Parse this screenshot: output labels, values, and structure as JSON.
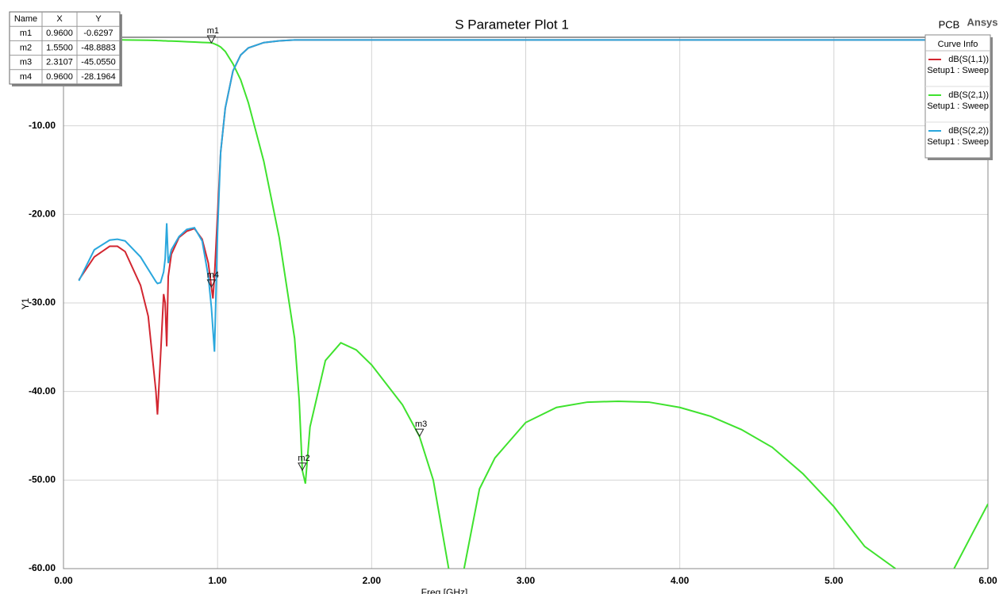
{
  "chart_data": {
    "type": "line",
    "title": "S Parameter Plot 1",
    "product": "PCB",
    "vendor": "Ansys",
    "xlabel": "Freq [GHz]",
    "ylabel": "Y1",
    "legend_title": "Curve Info",
    "grid": true,
    "xlim": [
      0,
      6
    ],
    "ylim": [
      -60,
      0
    ],
    "xticks": [
      {
        "value": 0,
        "label": "0.00"
      },
      {
        "value": 1,
        "label": "1.00"
      },
      {
        "value": 2,
        "label": "2.00"
      },
      {
        "value": 3,
        "label": "3.00"
      },
      {
        "value": 4,
        "label": "4.00"
      },
      {
        "value": 5,
        "label": "5.00"
      },
      {
        "value": 6,
        "label": "6.00"
      }
    ],
    "yticks": [
      {
        "value": -60,
        "label": "-60.00"
      },
      {
        "value": -50,
        "label": "-50.00"
      },
      {
        "value": -40,
        "label": "-40.00"
      },
      {
        "value": -30,
        "label": "-30.00"
      },
      {
        "value": -20,
        "label": "-20.00"
      },
      {
        "value": -10,
        "label": "-10.00"
      }
    ],
    "x": [
      0.1,
      0.2,
      0.3,
      0.35,
      0.4,
      0.5,
      0.55,
      0.6,
      0.61,
      0.63,
      0.65,
      0.66,
      0.67,
      0.68,
      0.7,
      0.75,
      0.8,
      0.85,
      0.9,
      0.94,
      0.96,
      0.97,
      0.98,
      1.0,
      1.02,
      1.05,
      1.1,
      1.15,
      1.2,
      1.3,
      1.4,
      1.5,
      1.53,
      1.55,
      1.57,
      1.6,
      1.7,
      1.8,
      1.9,
      2.0,
      2.2,
      2.31,
      2.4,
      2.5,
      2.55,
      2.6,
      2.7,
      2.8,
      3.0,
      3.2,
      3.4,
      3.6,
      3.8,
      4.0,
      4.2,
      4.4,
      4.6,
      4.8,
      5.0,
      5.2,
      5.4,
      5.6,
      5.78,
      5.9,
      6.0
    ],
    "series": [
      {
        "name": "dB(S(1,1))",
        "sweep": "Setup1 : Sweep",
        "color": "#d22630",
        "values": [
          -27.4,
          -24.8,
          -23.6,
          -23.6,
          -24.2,
          -28,
          -31.5,
          -40,
          -42.6,
          -36,
          -29,
          -30,
          -34.9,
          -27,
          -24.5,
          -22.6,
          -21.9,
          -21.6,
          -22.8,
          -25.5,
          -28.2,
          -29.5,
          -27,
          -20,
          -13,
          -8,
          -3.8,
          -2,
          -1.2,
          -0.6,
          -0.4,
          -0.3,
          -0.3,
          -0.3,
          -0.3,
          -0.3,
          -0.3,
          -0.3,
          -0.3,
          -0.3,
          -0.3,
          -0.3,
          -0.3,
          -0.3,
          -0.3,
          -0.3,
          -0.3,
          -0.3,
          -0.3,
          -0.3,
          -0.3,
          -0.3,
          -0.3,
          -0.3,
          -0.3,
          -0.3,
          -0.3,
          -0.3,
          -0.3,
          -0.3,
          -0.3,
          -0.3,
          -0.3,
          -0.3,
          -0.3
        ]
      },
      {
        "name": "dB(S(2,1))",
        "sweep": "Setup1 : Sweep",
        "color": "#3fe22e",
        "values": [
          -0.25,
          -0.25,
          -0.27,
          -0.28,
          -0.3,
          -0.32,
          -0.34,
          -0.36,
          -0.37,
          -0.38,
          -0.4,
          -0.4,
          -0.41,
          -0.42,
          -0.43,
          -0.46,
          -0.5,
          -0.54,
          -0.58,
          -0.61,
          -0.63,
          -0.68,
          -0.75,
          -0.9,
          -1.1,
          -1.6,
          -3,
          -4.8,
          -7.4,
          -14,
          -22.6,
          -34,
          -41,
          -48.9,
          -50.4,
          -44,
          -36.5,
          -34.5,
          -35.3,
          -37,
          -41.5,
          -45.05,
          -50,
          -60,
          null,
          -60,
          -51,
          -47.5,
          -43.5,
          -41.8,
          -41.2,
          -41.1,
          -41.2,
          -41.8,
          -42.8,
          -44.3,
          -46.3,
          -49.3,
          -53,
          -57.5,
          -60,
          null,
          -60,
          -56,
          -52.7
        ]
      },
      {
        "name": "dB(S(2,2))",
        "sweep": "Setup1 : Sweep",
        "color": "#2aa7dd",
        "values": [
          -27.5,
          -24,
          -22.9,
          -22.8,
          -23,
          -24.8,
          -26.2,
          -27.6,
          -27.8,
          -27.7,
          -26.5,
          -25,
          -21,
          -25.5,
          -24,
          -22.5,
          -21.7,
          -21.5,
          -23,
          -27,
          -30.5,
          -33,
          -35.5,
          -22,
          -13,
          -8,
          -3.8,
          -2,
          -1.2,
          -0.6,
          -0.4,
          -0.3,
          -0.3,
          -0.3,
          -0.3,
          -0.3,
          -0.3,
          -0.3,
          -0.3,
          -0.3,
          -0.3,
          -0.3,
          -0.3,
          -0.3,
          -0.3,
          -0.3,
          -0.3,
          -0.3,
          -0.3,
          -0.3,
          -0.3,
          -0.3,
          -0.3,
          -0.3,
          -0.3,
          -0.3,
          -0.3,
          -0.3,
          -0.3,
          -0.3,
          -0.3,
          -0.3,
          -0.3,
          -0.3,
          -0.3
        ]
      }
    ],
    "markers": {
      "columns": [
        "Name",
        "X",
        "Y"
      ],
      "rows": [
        [
          "m1",
          {
            "value": 0.96,
            "label": "0.9600"
          },
          {
            "value": -0.6297,
            "label": "-0.6297"
          }
        ],
        [
          "m2",
          {
            "value": 1.55,
            "label": "1.5500"
          },
          {
            "value": -48.8883,
            "label": "-48.8883"
          }
        ],
        [
          "m3",
          {
            "value": 2.3107,
            "label": "2.3107"
          },
          {
            "value": -45.055,
            "label": "-45.0550"
          }
        ],
        [
          "m4",
          {
            "value": 0.96,
            "label": "0.9600"
          },
          {
            "value": -28.1964,
            "label": "-28.1964"
          }
        ]
      ]
    }
  }
}
